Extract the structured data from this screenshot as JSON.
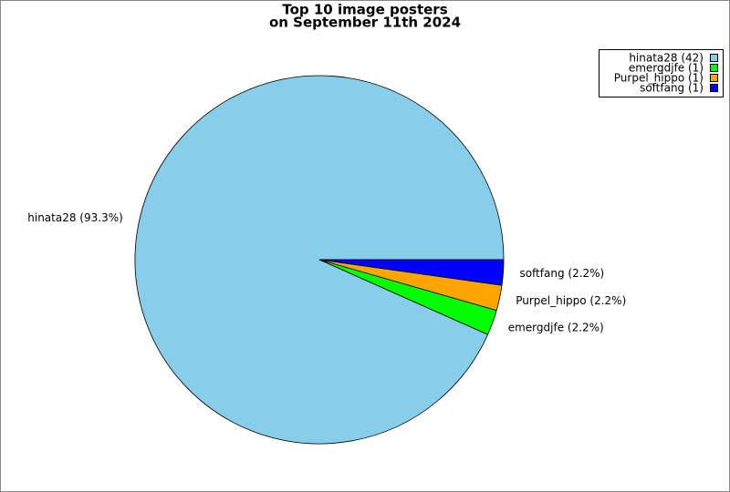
{
  "chart_data": {
    "type": "pie",
    "title": "Top 10 image posters",
    "subtitle": "on September 11th 2024",
    "categories": [
      "hinata28",
      "emergdjfe",
      "Purpel_hippo",
      "softfang"
    ],
    "values": [
      42,
      1,
      1,
      1
    ],
    "colors": [
      "#87ceeb",
      "#00ff00",
      "#ffa500",
      "#0000ff"
    ],
    "value_labels": [
      "hinata28 (42)",
      "emergdjfe (1)",
      "Purpel_hippo (1)",
      "softfang (1)"
    ],
    "slice_labels": [
      "hinata28 (93.3%)",
      "emergdjfe (2.2%)",
      "Purpel_hippo (2.2%)",
      "softfang (2.2%)"
    ],
    "legend": "upper right"
  }
}
